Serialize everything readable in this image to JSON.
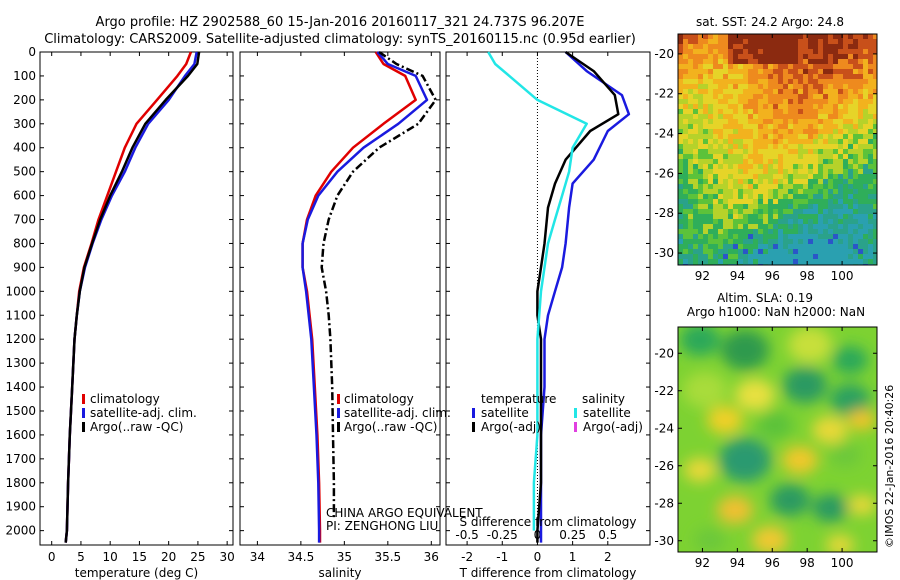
{
  "header": {
    "title_line1": "Argo profile: HZ 2902588_60 15-Jan-2016 20160117_321 24.737S 96.207E",
    "title_line2": "Climatology: CARS2009. Satellite-adjusted climatology: synTS_20160115.nc (0.95d earlier)"
  },
  "credits": {
    "program": "CHINA ARGO EQUIVALENT",
    "pi": "PI: ZENGHONG LIU",
    "stamp": "©IMOS 22-Jan-2016 20:40:26"
  },
  "colors": {
    "climatology": "#e00000",
    "satellite": "#1a1adf",
    "argo": "#000000",
    "s_satellite": "#22e6e6",
    "s_argo": "#e040e0"
  },
  "chart_data": [
    {
      "id": "temperature",
      "type": "line",
      "xlabel": "temperature (deg C)",
      "xlim": [
        -2,
        31
      ],
      "ylim": [
        2060,
        0
      ],
      "xticks": [
        0,
        5,
        10,
        15,
        20,
        25,
        30
      ],
      "yticks": [
        0,
        100,
        200,
        300,
        400,
        500,
        600,
        700,
        800,
        900,
        1000,
        1100,
        1200,
        1300,
        1400,
        1500,
        1600,
        1700,
        1800,
        1900,
        2000
      ],
      "legend": [
        "climatology",
        "satellite-adj. clim.",
        "Argo(..raw -QC)"
      ],
      "series": [
        {
          "name": "climatology",
          "color": "#e00000",
          "style": "solid",
          "x": [
            23.8,
            23.0,
            21.5,
            18.0,
            14.5,
            12.5,
            11.0,
            9.5,
            8.0,
            6.8,
            5.5,
            4.7,
            4.3,
            3.9,
            3.5,
            3.1,
            2.8,
            2.6,
            2.4
          ],
          "y": [
            0,
            50,
            100,
            200,
            300,
            400,
            500,
            600,
            700,
            800,
            900,
            1000,
            1100,
            1200,
            1400,
            1600,
            1800,
            2000,
            2050
          ]
        },
        {
          "name": "satellite-adj. clim.",
          "color": "#1a1adf",
          "style": "solid",
          "x": [
            24.8,
            24.4,
            22.8,
            20.0,
            16.5,
            14.3,
            12.5,
            10.3,
            8.5,
            7.0,
            5.7,
            4.8,
            4.3,
            3.9,
            3.5,
            3.1,
            2.8,
            2.6,
            2.4
          ],
          "y": [
            0,
            50,
            100,
            200,
            300,
            400,
            500,
            600,
            700,
            800,
            900,
            1000,
            1100,
            1200,
            1400,
            1600,
            1800,
            2000,
            2050
          ]
        },
        {
          "name": "Argo(..raw -QC)",
          "color": "#000000",
          "style": "solid",
          "x": [
            25.2,
            24.9,
            23.3,
            19.5,
            16.0,
            13.8,
            12.0,
            10.0,
            8.3,
            6.9,
            5.6,
            4.8,
            4.3,
            3.9,
            3.5,
            3.1,
            2.8,
            2.6,
            2.4
          ],
          "y": [
            0,
            50,
            100,
            200,
            300,
            400,
            500,
            600,
            700,
            800,
            900,
            1000,
            1100,
            1200,
            1400,
            1600,
            1800,
            2000,
            2050
          ]
        }
      ]
    },
    {
      "id": "salinity",
      "type": "line",
      "xlabel": "salinity",
      "xlim": [
        33.8,
        36.1
      ],
      "ylim": [
        2060,
        0
      ],
      "xticks": [
        34,
        34.5,
        35,
        35.5,
        36
      ],
      "xticklabels": [
        "34",
        "34.5",
        "35",
        "35.5",
        "36"
      ],
      "legend": [
        "climatology",
        "satellite-adj. clim.",
        "Argo(..raw -QC)"
      ],
      "series": [
        {
          "name": "climatology",
          "color": "#e00000",
          "style": "solid",
          "x": [
            35.36,
            35.45,
            35.7,
            35.82,
            35.45,
            35.1,
            34.85,
            34.67,
            34.57,
            34.52,
            34.52,
            34.57,
            34.6,
            34.63,
            34.66,
            34.69,
            34.71,
            34.72,
            34.72
          ],
          "y": [
            0,
            50,
            100,
            200,
            300,
            400,
            500,
            600,
            700,
            800,
            900,
            1000,
            1100,
            1200,
            1400,
            1600,
            1800,
            2000,
            2050
          ]
        },
        {
          "name": "satellite-adj. clim.",
          "color": "#1a1adf",
          "style": "solid",
          "x": [
            35.38,
            35.5,
            35.82,
            35.95,
            35.62,
            35.22,
            34.92,
            34.7,
            34.58,
            34.52,
            34.52,
            34.56,
            34.59,
            34.62,
            34.65,
            34.68,
            34.7,
            34.71,
            34.71
          ],
          "y": [
            0,
            50,
            100,
            200,
            300,
            400,
            500,
            600,
            700,
            800,
            900,
            1000,
            1100,
            1200,
            1400,
            1600,
            1800,
            2000,
            2050
          ]
        },
        {
          "name": "Argo(..raw -QC)",
          "color": "#000000",
          "style": "dashdot",
          "x": [
            35.4,
            35.6,
            35.9,
            36.05,
            35.85,
            35.4,
            35.1,
            34.92,
            34.82,
            34.76,
            34.74,
            34.79,
            34.82,
            34.84,
            34.86,
            34.87,
            34.88,
            34.88
          ],
          "y": [
            0,
            50,
            100,
            200,
            300,
            400,
            500,
            600,
            700,
            800,
            900,
            1000,
            1100,
            1200,
            1400,
            1600,
            1800,
            1950
          ]
        }
      ]
    },
    {
      "id": "difference",
      "type": "line",
      "xlabel": "T difference from climatology",
      "xlabel_top": "S difference from climatology",
      "xlim": [
        -2.6,
        3.2
      ],
      "ylim": [
        2060,
        0
      ],
      "xticks": [
        -2,
        -1,
        0,
        1,
        2
      ],
      "s_xticklabels": [
        "-0.5",
        "-0.25",
        "0",
        "0.25",
        "0.5"
      ],
      "legend_left_title": "temperature",
      "legend_right_title": "salinity",
      "legend": [
        "satellite",
        "Argo(-adj)",
        "satellite",
        "Argo(-adj)"
      ],
      "series": [
        {
          "name": "temperature satellite",
          "color": "#1a1adf",
          "x": [
            0.8,
            1.4,
            2.4,
            2.6,
            2.0,
            1.6,
            1.0,
            0.9,
            0.8,
            0.7,
            0.5,
            0.3,
            0.2,
            0.2,
            0.1,
            0.1,
            0.1,
            0.1
          ],
          "y": [
            0,
            80,
            180,
            260,
            330,
            450,
            550,
            650,
            800,
            900,
            1000,
            1100,
            1200,
            1400,
            1600,
            1800,
            2000,
            2050
          ]
        },
        {
          "name": "temperature Argo(-adj)",
          "color": "#000000",
          "x": [
            0.8,
            1.6,
            2.2,
            2.3,
            1.5,
            0.8,
            0.5,
            0.3,
            0.2,
            0.1,
            0.0,
            0.0,
            0.1,
            0.1,
            0.1,
            0.1,
            0.0,
            0.0
          ],
          "y": [
            0,
            80,
            180,
            260,
            330,
            450,
            550,
            650,
            800,
            900,
            1000,
            1100,
            1200,
            1400,
            1600,
            1800,
            2000,
            2050
          ]
        },
        {
          "name": "salinity satellite",
          "color": "#22e6e6",
          "x": [
            -1.4,
            -1.2,
            -0.8,
            0.0,
            1.4,
            1.0,
            0.9,
            0.7,
            0.5,
            0.3,
            0.2,
            0.1,
            0.0,
            0.0,
            0.0,
            -0.1,
            -0.1
          ],
          "y": [
            0,
            50,
            100,
            200,
            300,
            400,
            500,
            600,
            700,
            800,
            900,
            1000,
            1200,
            1400,
            1600,
            1800,
            2000
          ]
        }
      ]
    },
    {
      "id": "sst_map",
      "type": "heatmap",
      "title": "sat. SST: 24.2 Argo: 24.8",
      "xticks": [
        92,
        94,
        96,
        98,
        100
      ],
      "yticks": [
        -20,
        -22,
        -24,
        -26,
        -28,
        -30
      ],
      "xlim": [
        90.6,
        102
      ],
      "ylim": [
        -30.6,
        -19
      ]
    },
    {
      "id": "sla_map",
      "type": "heatmap",
      "title": "Altim. SLA: 0.19",
      "subtitle": "Argo h1000: NaN h2000: NaN",
      "xticks": [
        92,
        94,
        96,
        98,
        100
      ],
      "yticks": [
        -20,
        -22,
        -24,
        -26,
        -28,
        -30
      ],
      "xlim": [
        90.6,
        102
      ],
      "ylim": [
        -30.6,
        -18.6
      ]
    }
  ]
}
